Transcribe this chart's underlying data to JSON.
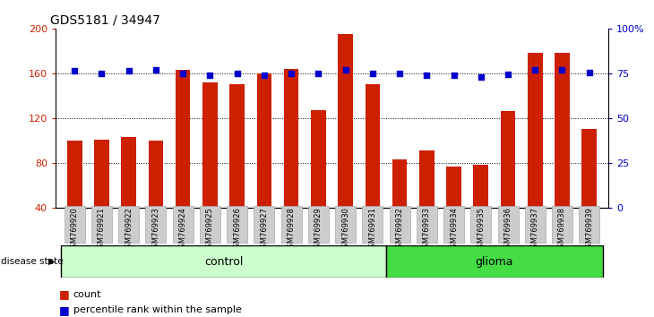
{
  "title": "GDS5181 / 34947",
  "samples": [
    "GSM769920",
    "GSM769921",
    "GSM769922",
    "GSM769923",
    "GSM769924",
    "GSM769925",
    "GSM769926",
    "GSM769927",
    "GSM769928",
    "GSM769929",
    "GSM769930",
    "GSM769931",
    "GSM769932",
    "GSM769933",
    "GSM769934",
    "GSM769935",
    "GSM769936",
    "GSM769937",
    "GSM769938",
    "GSM769939"
  ],
  "bar_values": [
    100,
    101,
    103,
    100,
    163,
    152,
    150,
    160,
    164,
    127,
    195,
    150,
    83,
    91,
    77,
    78,
    126,
    178,
    178,
    110
  ],
  "dot_values": [
    162,
    160,
    162,
    163,
    160,
    158,
    160,
    158,
    160,
    160,
    163,
    160,
    160,
    158,
    158,
    157,
    159,
    163,
    163,
    161
  ],
  "ylim_left": [
    40,
    200
  ],
  "ylim_right": [
    0,
    100
  ],
  "yticks_left": [
    40,
    80,
    120,
    160,
    200
  ],
  "yticks_right": [
    0,
    25,
    50,
    75,
    100
  ],
  "ytick_labels_right": [
    "0",
    "25",
    "50",
    "75",
    "100%"
  ],
  "n_control": 12,
  "bar_color": "#cc2000",
  "dot_color": "#0000cc",
  "control_color": "#ccffcc",
  "glioma_color": "#44dd44",
  "legend_count_color": "#cc2000",
  "legend_pct_color": "#0000cc",
  "tick_bg_color": "#cccccc"
}
